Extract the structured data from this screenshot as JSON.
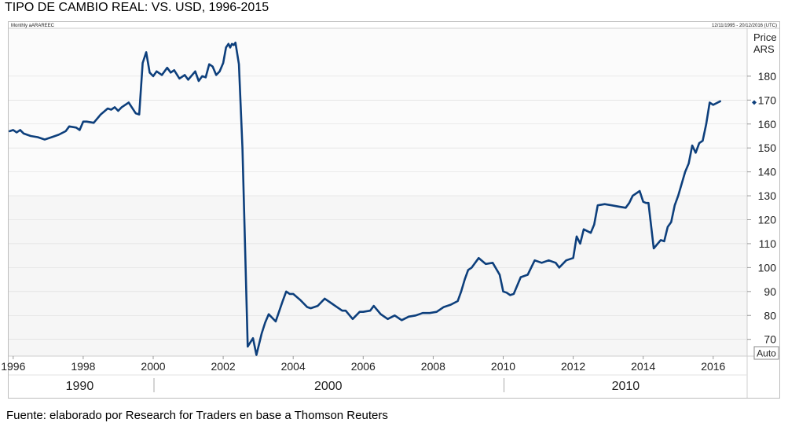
{
  "title": "TIPO DE CAMBIO REAL: VS. USD, 1996-2015",
  "source": "Fuente: elaborado por Research for Traders en base a Thomson Reuters",
  "chart_header": {
    "left": "Monthly aARAREEC",
    "right": "12/11/1995 - 20/12/2016 (UTC)"
  },
  "axis_title": [
    "Price",
    "ARS"
  ],
  "auto_label": "Auto",
  "colors": {
    "line": "#0d3f7c",
    "grid": "#d9d9d9",
    "plot_bg": "#f6f6f6"
  },
  "chart_data": {
    "type": "line",
    "title": "TIPO DE CAMBIO REAL: VS. USD, 1996-2015",
    "xlabel": "",
    "ylabel": "Price ARS",
    "xlim": [
      1995.87,
      2016.97
    ],
    "ylim": [
      63,
      200
    ],
    "y_ticks": [
      70,
      80,
      90,
      100,
      110,
      120,
      130,
      140,
      150,
      160,
      170,
      180
    ],
    "x_ticks": [
      1996,
      1998,
      2000,
      2002,
      2004,
      2006,
      2008,
      2010,
      2012,
      2014,
      2016
    ],
    "decades": [
      {
        "label": "1990",
        "x": 1997.9
      },
      {
        "label": "2000",
        "x": 2005.0
      },
      {
        "label": "2010",
        "x": 2013.5
      }
    ],
    "decade_dividers": [
      2000,
      2010
    ],
    "last_value": 169,
    "series": [
      {
        "x": [
          1995.9,
          1996.0,
          1996.1,
          1996.2,
          1996.3,
          1996.5,
          1996.7,
          1996.9,
          1997.1,
          1997.3,
          1997.5,
          1997.6,
          1997.8,
          1997.9,
          1998.0,
          1998.1,
          1998.3,
          1998.5,
          1998.7,
          1998.8,
          1998.9,
          1999.0,
          1999.1,
          1999.3,
          1999.5,
          1999.6,
          1999.7,
          1999.8,
          1999.9,
          2000.0,
          2000.1,
          2000.25,
          2000.4,
          2000.5,
          2000.6,
          2000.75,
          2000.9,
          2001.0,
          2001.2,
          2001.3,
          2001.4,
          2001.5,
          2001.6,
          2001.7,
          2001.8,
          2001.9,
          2002.0,
          2002.08,
          2002.15,
          2002.2,
          2002.25,
          2002.3,
          2002.35,
          2002.45,
          2002.55,
          2002.7,
          2002.85,
          2002.95,
          2003.1,
          2003.2,
          2003.3,
          2003.5,
          2003.7,
          2003.8,
          2003.9,
          2004.0,
          2004.2,
          2004.4,
          2004.5,
          2004.7,
          2004.9,
          2005.1,
          2005.2,
          2005.4,
          2005.5,
          2005.7,
          2005.9,
          2006.0,
          2006.2,
          2006.3,
          2006.5,
          2006.7,
          2006.9,
          2007.1,
          2007.3,
          2007.5,
          2007.7,
          2007.9,
          2008.1,
          2008.3,
          2008.5,
          2008.7,
          2008.8,
          2008.9,
          2009.0,
          2009.1,
          2009.3,
          2009.5,
          2009.7,
          2009.9,
          2010.0,
          2010.1,
          2010.2,
          2010.3,
          2010.5,
          2010.7,
          2010.9,
          2011.1,
          2011.3,
          2011.5,
          2011.6,
          2011.8,
          2012.0,
          2012.1,
          2012.2,
          2012.3,
          2012.5,
          2012.6,
          2012.7,
          2012.9,
          2013.1,
          2013.3,
          2013.5,
          2013.6,
          2013.7,
          2013.9,
          2014.0,
          2014.08,
          2014.15,
          2014.3,
          2014.5,
          2014.6,
          2014.7,
          2014.8,
          2014.9,
          2015.0,
          2015.2,
          2015.3,
          2015.4,
          2015.5,
          2015.6,
          2015.7,
          2015.8,
          2015.9,
          2016.0,
          2016.2
        ],
        "values": [
          157,
          157.5,
          156.5,
          157.5,
          156,
          155,
          154.5,
          153.5,
          154.5,
          155.5,
          157,
          159,
          158.5,
          157.5,
          161,
          161,
          160.5,
          164,
          166.5,
          166,
          167,
          165.5,
          167,
          169,
          164.5,
          164,
          185.5,
          190,
          181.5,
          180,
          182,
          180.5,
          183.5,
          181.5,
          182.5,
          179,
          180.5,
          178.5,
          182,
          178,
          180,
          179.5,
          185,
          184,
          180.5,
          182,
          185.5,
          192,
          193.5,
          192,
          193.5,
          193,
          194,
          185,
          150,
          67,
          70.5,
          63.5,
          72.5,
          77,
          80.5,
          77.5,
          86,
          90,
          89,
          89,
          86.5,
          83.5,
          83,
          84,
          87,
          85,
          84,
          82,
          82,
          78.5,
          81.5,
          81.5,
          82,
          84,
          80.5,
          78.5,
          80,
          78,
          79.5,
          80,
          81,
          81,
          81.5,
          83.5,
          84.5,
          86,
          90,
          95,
          99,
          100,
          104,
          101.5,
          102,
          97,
          90,
          89.5,
          88.5,
          89,
          96,
          97,
          103,
          102,
          103,
          102,
          100,
          103,
          104,
          113,
          110,
          116,
          114.5,
          118,
          126,
          126.5,
          126,
          125.5,
          125,
          127,
          130,
          132,
          127.5,
          127,
          127,
          108,
          111.5,
          111,
          117,
          119,
          126,
          130,
          140,
          143.5,
          151,
          148,
          152,
          153,
          160,
          169,
          168,
          169.5
        ]
      }
    ]
  }
}
